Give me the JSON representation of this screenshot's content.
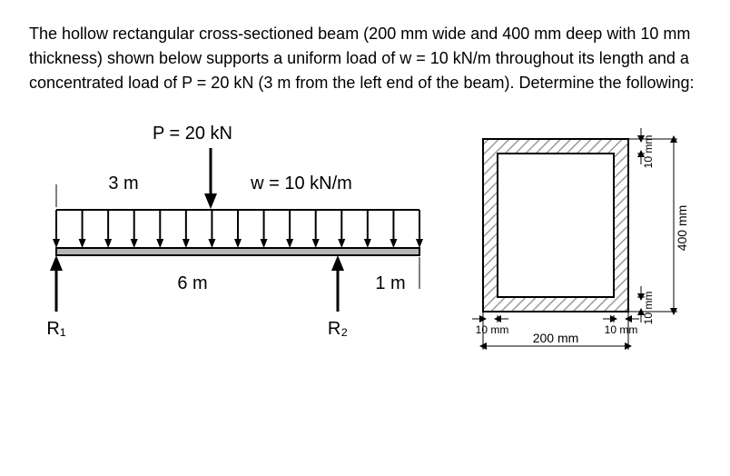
{
  "problem": {
    "text": "The hollow rectangular cross-sectioned beam (200 mm wide and 400 mm deep with 10 mm thickness) shown below supports a uniform load of w = 10 kN/m throughout its length and a concentrated load of P = 20 kN (3 m from the left end of the beam). Determine the following:"
  },
  "beam": {
    "P_label": "P = 20 kN",
    "w_label": "w = 10 kN/m",
    "dim_left": "3 m",
    "span_R1_R2": "6 m",
    "overhang": "1 m",
    "R1": "R₁",
    "R2": "R₂",
    "colors": {
      "beam_fill": "#b7b7b7",
      "beam_stroke": "#000000",
      "arrow_fill": "#000000"
    },
    "geometry": {
      "total_length_m": 7,
      "P_pos_m": 3,
      "R2_pos_m": 6
    }
  },
  "cross": {
    "width_label": "200 mm",
    "height_label": "400 mm",
    "t_label": "10 mm",
    "colors": {
      "hatch": "#9b9b9b",
      "stroke": "#000000",
      "bg": "#ffffff"
    }
  }
}
